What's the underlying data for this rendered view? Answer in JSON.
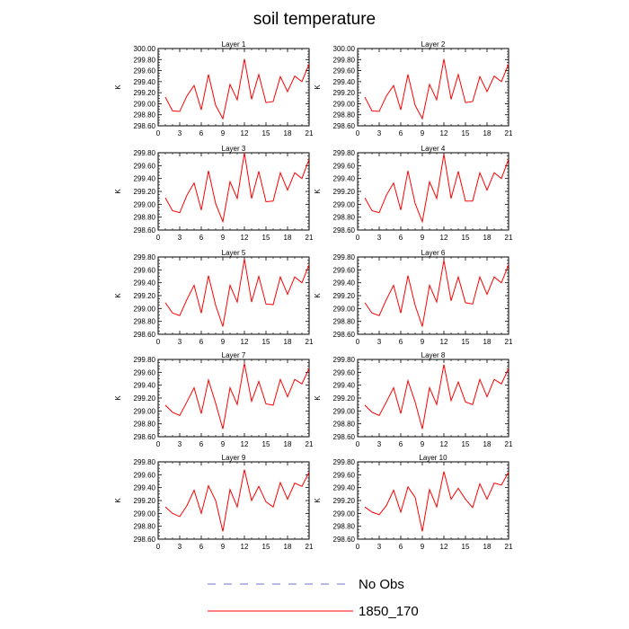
{
  "title": "soil temperature",
  "chart_data": {
    "type": "line",
    "shared": {
      "ylabel": "K",
      "x": [
        1,
        2,
        3,
        4,
        5,
        6,
        7,
        8,
        9,
        10,
        11,
        12,
        13,
        14,
        15,
        16,
        17,
        18,
        19,
        20,
        21
      ],
      "xticks": [
        0,
        3,
        6,
        9,
        12,
        15,
        18,
        21
      ],
      "xlim": [
        0,
        21
      ],
      "legend_placement": "bottom"
    },
    "panels": [
      {
        "title": "Layer 1",
        "ylim": [
          298.6,
          300.0
        ],
        "yticks": [
          "298.60",
          "298.80",
          "299.00",
          "299.20",
          "299.40",
          "299.60",
          "299.80",
          "300.00"
        ],
        "series": [
          {
            "name": "1850_170",
            "color": "#ff0000",
            "values": [
              299.12,
              298.87,
              298.86,
              299.14,
              299.33,
              298.89,
              299.53,
              298.97,
              298.73,
              299.35,
              299.07,
              299.81,
              299.08,
              299.53,
              299.02,
              299.04,
              299.49,
              299.22,
              299.5,
              299.4,
              299.72
            ]
          }
        ]
      },
      {
        "title": "Layer 2",
        "ylim": [
          298.6,
          300.0
        ],
        "yticks": [
          "298.60",
          "298.80",
          "299.00",
          "299.20",
          "299.40",
          "299.60",
          "299.80",
          "300.00"
        ],
        "series": [
          {
            "name": "1850_170",
            "color": "#ff0000",
            "values": [
              299.12,
              298.87,
              298.86,
              299.14,
              299.33,
              298.89,
              299.53,
              298.97,
              298.73,
              299.35,
              299.07,
              299.81,
              299.08,
              299.53,
              299.02,
              299.04,
              299.49,
              299.22,
              299.5,
              299.4,
              299.72
            ]
          }
        ]
      },
      {
        "title": "Layer 3",
        "ylim": [
          298.6,
          299.8
        ],
        "yticks": [
          "298.60",
          "298.80",
          "299.00",
          "299.20",
          "299.40",
          "299.60",
          "299.80"
        ],
        "series": [
          {
            "name": "1850_170",
            "color": "#ff0000",
            "values": [
              299.1,
              298.9,
              298.87,
              299.14,
              299.33,
              298.91,
              299.52,
              299.01,
              298.73,
              299.35,
              299.09,
              299.8,
              299.09,
              299.51,
              299.04,
              299.05,
              299.49,
              299.22,
              299.49,
              299.4,
              299.7
            ]
          }
        ]
      },
      {
        "title": "Layer 4",
        "ylim": [
          298.6,
          299.8
        ],
        "yticks": [
          "298.60",
          "298.80",
          "299.00",
          "299.20",
          "299.40",
          "299.60",
          "299.80"
        ],
        "series": [
          {
            "name": "1850_170",
            "color": "#ff0000",
            "values": [
              299.1,
              298.9,
              298.87,
              299.14,
              299.33,
              298.91,
              299.52,
              299.01,
              298.73,
              299.35,
              299.09,
              299.78,
              299.09,
              299.51,
              299.05,
              299.05,
              299.49,
              299.22,
              299.49,
              299.4,
              299.7
            ]
          }
        ]
      },
      {
        "title": "Layer 5",
        "ylim": [
          298.6,
          299.8
        ],
        "yticks": [
          "298.60",
          "298.80",
          "299.00",
          "299.20",
          "299.40",
          "299.60",
          "299.80"
        ],
        "series": [
          {
            "name": "1850_170",
            "color": "#ff0000",
            "values": [
              299.09,
              298.93,
              298.89,
              299.14,
              299.36,
              298.93,
              299.51,
              299.05,
              298.72,
              299.36,
              299.1,
              299.77,
              299.1,
              299.5,
              299.07,
              299.06,
              299.49,
              299.22,
              299.49,
              299.4,
              299.68
            ]
          }
        ]
      },
      {
        "title": "Layer 6",
        "ylim": [
          298.6,
          299.8
        ],
        "yticks": [
          "298.60",
          "298.80",
          "299.00",
          "299.20",
          "299.40",
          "299.60",
          "299.80"
        ],
        "series": [
          {
            "name": "1850_170",
            "color": "#ff0000",
            "values": [
              299.09,
              298.93,
              298.89,
              299.14,
              299.36,
              298.93,
              299.51,
              299.05,
              298.72,
              299.36,
              299.1,
              299.75,
              299.12,
              299.49,
              299.09,
              299.07,
              299.49,
              299.22,
              299.49,
              299.4,
              299.68
            ]
          }
        ]
      },
      {
        "title": "Layer 7",
        "ylim": [
          298.6,
          299.8
        ],
        "yticks": [
          "298.60",
          "298.80",
          "299.00",
          "299.20",
          "299.40",
          "299.60",
          "299.80"
        ],
        "series": [
          {
            "name": "1850_170",
            "color": "#ff0000",
            "values": [
              299.09,
              298.98,
              298.93,
              299.14,
              299.36,
              298.96,
              299.48,
              299.12,
              298.72,
              299.36,
              299.1,
              299.74,
              299.15,
              299.46,
              299.11,
              299.09,
              299.49,
              299.22,
              299.49,
              299.42,
              299.66
            ]
          }
        ]
      },
      {
        "title": "Layer 8",
        "ylim": [
          298.6,
          299.8
        ],
        "yticks": [
          "298.60",
          "298.80",
          "299.00",
          "299.20",
          "299.40",
          "299.60",
          "299.80"
        ],
        "series": [
          {
            "name": "1850_170",
            "color": "#ff0000",
            "values": [
              299.09,
              298.98,
              298.93,
              299.14,
              299.36,
              298.96,
              299.47,
              299.14,
              298.72,
              299.36,
              299.1,
              299.72,
              299.16,
              299.45,
              299.14,
              299.1,
              299.49,
              299.22,
              299.49,
              299.42,
              299.66
            ]
          }
        ]
      },
      {
        "title": "Layer 9",
        "ylim": [
          298.6,
          299.8
        ],
        "yticks": [
          "298.60",
          "298.80",
          "299.00",
          "299.20",
          "299.40",
          "299.60",
          "299.80"
        ],
        "series": [
          {
            "name": "1850_170",
            "color": "#ff0000",
            "values": [
              299.1,
              299.0,
              298.95,
              299.12,
              299.36,
              299.0,
              299.43,
              299.2,
              298.72,
              299.37,
              299.1,
              299.68,
              299.2,
              299.42,
              299.18,
              299.1,
              299.48,
              299.22,
              299.47,
              299.42,
              299.64
            ]
          }
        ]
      },
      {
        "title": "Layer 10",
        "ylim": [
          298.6,
          299.8
        ],
        "yticks": [
          "298.60",
          "298.80",
          "299.00",
          "299.20",
          "299.40",
          "299.60",
          "299.80"
        ],
        "series": [
          {
            "name": "1850_170",
            "color": "#ff0000",
            "values": [
              299.1,
              299.02,
              298.98,
              299.12,
              299.36,
              299.02,
              299.41,
              299.25,
              298.72,
              299.37,
              299.1,
              299.65,
              299.22,
              299.39,
              299.22,
              299.09,
              299.46,
              299.22,
              299.47,
              299.44,
              299.64
            ]
          }
        ]
      }
    ],
    "legend": [
      {
        "name": "No Obs",
        "color": "#7070c8",
        "style": "dashed"
      },
      {
        "name": "1850_170",
        "color": "#ff0000",
        "style": "solid"
      }
    ]
  }
}
